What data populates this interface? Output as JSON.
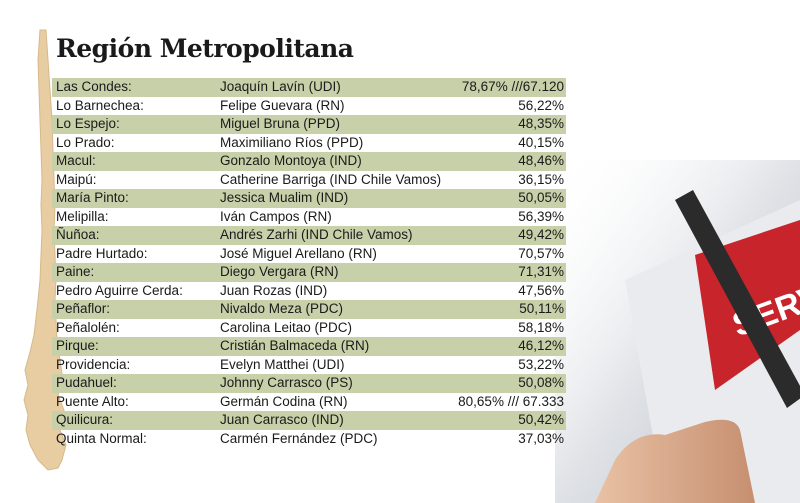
{
  "title": "Región Metropolitana",
  "rows": [
    {
      "comuna": "Las Condes:",
      "candidato": "Joaquín Lavín (UDI)",
      "resultado": "78,67% ///67.120"
    },
    {
      "comuna": "Lo Barnechea:",
      "candidato": "Felipe Guevara (RN)",
      "resultado": "56,22%"
    },
    {
      "comuna": "Lo Espejo:",
      "candidato": "Miguel Bruna (PPD)",
      "resultado": "48,35%"
    },
    {
      "comuna": "Lo Prado:",
      "candidato": "Maximiliano Ríos (PPD)",
      "resultado": "40,15%"
    },
    {
      "comuna": "Macul:",
      "candidato": "Gonzalo Montoya (IND)",
      "resultado": "48,46%"
    },
    {
      "comuna": "Maipú:",
      "candidato": "Catherine Barriga (IND Chile Vamos)",
      "resultado": "36,15%"
    },
    {
      "comuna": "María Pinto:",
      "candidato": "Jessica Mualim (IND)",
      "resultado": "50,05%"
    },
    {
      "comuna": "Melipilla:",
      "candidato": "Iván Campos (RN)",
      "resultado": "56,39%"
    },
    {
      "comuna": "Ñuñoa:",
      "candidato": "Andrés Zarhi (IND Chile Vamos)",
      "resultado": "49,42%"
    },
    {
      "comuna": "Padre Hurtado:",
      "candidato": "José Miguel Arellano (RN)",
      "resultado": "70,57%"
    },
    {
      "comuna": "Paine:",
      "candidato": "Diego Vergara (RN)",
      "resultado": "71,31%"
    },
    {
      "comuna": "Pedro Aguirre Cerda:",
      "candidato": "Juan Rozas (IND)",
      "resultado": "47,56%"
    },
    {
      "comuna": "Peñaflor:",
      "candidato": "Nivaldo Meza (PDC)",
      "resultado": "50,11%"
    },
    {
      "comuna": "Peñalolén:",
      "candidato": "Carolina Leitao (PDC)",
      "resultado": "58,18%"
    },
    {
      "comuna": "Pirque:",
      "candidato": "Cristián Balmaceda (RN)",
      "resultado": "46,12%"
    },
    {
      "comuna": "Providencia:",
      "candidato": "Evelyn Matthei (UDI)",
      "resultado": "53,22%"
    },
    {
      "comuna": "Pudahuel:",
      "candidato": "Johnny Carrasco (PS)",
      "resultado": "50,08%"
    },
    {
      "comuna": "Puente Alto:",
      "candidato": "Germán Codina (RN)",
      "resultado": "80,65% /// 67.333"
    },
    {
      "comuna": "Quilicura:",
      "candidato": "Juan Carrasco (IND)",
      "resultado": "50,42%"
    },
    {
      "comuna": "Quinta Normal:",
      "candidato": "Carmén Fernández (PDC)",
      "resultado": "37,03%"
    }
  ],
  "ballot_box_text": "SERVEL",
  "colors": {
    "row_shade": "#c8d0a9",
    "map": "#e8cda3",
    "servel_red": "#c8242b"
  }
}
